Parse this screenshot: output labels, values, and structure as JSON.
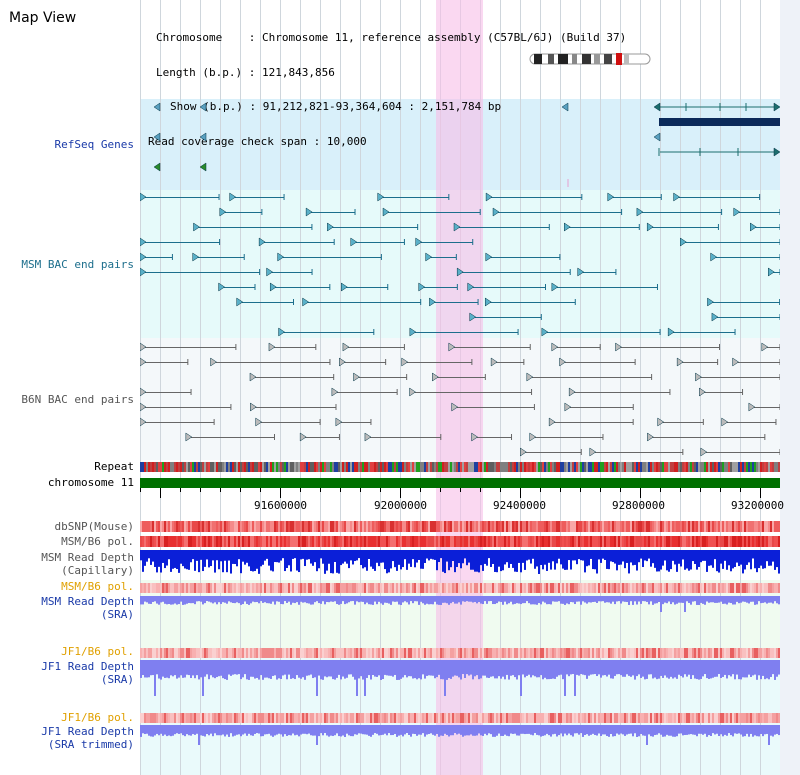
{
  "title": "Map View",
  "info": {
    "chromosome_key": "Chromosome",
    "chromosome_val": "Chromosome 11, reference assembly (C57BL/6J) (Build 37)",
    "length_key": "Length (b.p.)",
    "length_val": "121,843,856",
    "show_key": "Show (b.p.)",
    "show_val": "91,212,821-93,364,604 : 2,151,784 bp",
    "span_key": "Read coverage check span",
    "span_val": "10,000"
  },
  "tracks": {
    "refseq": "RefSeq Genes",
    "msm_bac": "MSM BAC end pairs",
    "b6n_bac": "B6N BAC end pairs",
    "repeat": "Repeat",
    "chromosome": "chromosome 11",
    "dbsnp": "dbSNP(Mouse)",
    "msm_b6_pol": "MSM/B6 pol.",
    "msm_read_depth_cap_1": "MSM Read Depth",
    "msm_read_depth_cap_2": "(Capillary)",
    "msm_b6_pol_2": "MSM/B6 pol.",
    "msm_read_depth_sra_1": "MSM Read Depth",
    "msm_read_depth_sra_2": "(SRA)",
    "jf1_b6_pol": "JF1/B6 pol.",
    "jf1_read_depth_sra_1": "JF1 Read Depth",
    "jf1_read_depth_sra_2": "(SRA)",
    "jf1_b6_pol_2": "JF1/B6 pol.",
    "jf1_read_depth_trim_1": "JF1 Read Depth",
    "jf1_read_depth_trim_2": "(SRA trimmed)"
  },
  "axis": {
    "ticks": [
      "91600000",
      "92000000",
      "92400000",
      "92800000",
      "93200000"
    ]
  },
  "colors": {
    "refseq_bg": "#d9f0fa",
    "bac_bg": "#e6fafa",
    "b6n_bg": "#f4f8fa",
    "highlight": "#f8d8f0",
    "chromosome": "#007000",
    "depth_dark": "#0b1fd8",
    "depth_light": "#7f7ff0"
  }
}
